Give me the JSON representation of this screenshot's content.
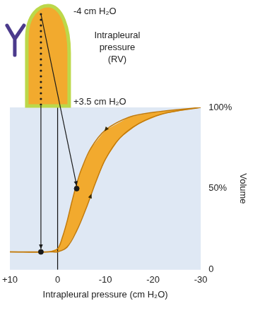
{
  "chart_data": {
    "type": "line",
    "x_label": "Intrapleural pressure (cm H₂O)",
    "y_label": "Volume",
    "xlim": [
      10,
      -30
    ],
    "xticks": [
      {
        "value": 10,
        "label": "+10"
      },
      0,
      -10,
      -20,
      -30
    ],
    "ylim": [
      0,
      100
    ],
    "yticks": [
      0,
      {
        "value": 50,
        "label": "50%"
      },
      {
        "value": 100,
        "label": "100%"
      }
    ],
    "grid": false,
    "color": "#f2aa2e",
    "series": [
      {
        "color": "#c27b0c",
        "x": [
          10,
          2,
          0,
          -1,
          -2,
          -3,
          -4,
          -5,
          -7,
          -10,
          -15,
          -20,
          -30
        ],
        "values": [
          11,
          11,
          13,
          20,
          30,
          42,
          53,
          62,
          75,
          86,
          94,
          97,
          100
        ]
      },
      {
        "color": "#c27b0c",
        "x": [
          10,
          1,
          0,
          -2,
          -4,
          -6,
          -7,
          -8,
          -10,
          -13,
          -17,
          -22,
          -30
        ],
        "values": [
          11,
          11,
          11,
          14,
          24,
          38,
          46,
          54,
          68,
          81,
          90,
          96,
          100
        ]
      }
    ],
    "reference_lines": [
      {
        "x": 0
      }
    ],
    "annotations": [
      {
        "text": "-4 cm H₂O",
        "x": -4,
        "y": 50
      },
      {
        "text": "+3.5 cm H₂O",
        "x": 3.5,
        "y": 11
      }
    ],
    "diagram_label": "Intrapleural pressure (RV)"
  }
}
